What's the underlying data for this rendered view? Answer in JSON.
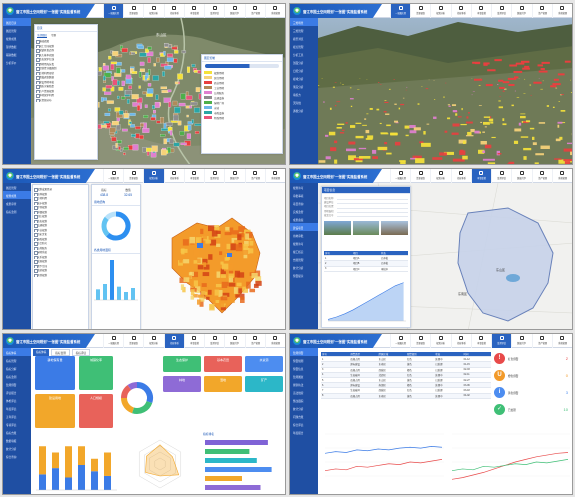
{
  "app": {
    "title": "窗江市国土空间规划\"一张图\"实施监督系统"
  },
  "nav": [
    {
      "label": "一张图应用"
    },
    {
      "label": "资源调查"
    },
    {
      "label": "规划分析"
    },
    {
      "label": "指标体系"
    },
    {
      "label": "审查监管"
    },
    {
      "label": "监测评估"
    },
    {
      "label": "数据共享"
    },
    {
      "label": "资产管理"
    },
    {
      "label": "系统管理"
    }
  ],
  "s1": {
    "side": [
      "图层目录",
      "图层管理",
      "规划成果",
      "现状数据",
      "辅助数据",
      "分析评价"
    ],
    "tree_title": "目录",
    "tree_tabs": [
      "全部图层",
      "专题"
    ],
    "tree": [
      "基础底图",
      "国土空间规划",
      "城镇开发边界",
      "永久基本农田",
      "生态保护红线",
      "用地用海分类",
      "控制性详细规划",
      "土地利用现状",
      "地籍调查数据",
      "建设用地审批",
      "地质灾害隐患",
      "矿产资源规划",
      "林地保护利用",
      "水资源分布"
    ],
    "legend_title": "图层控制",
    "legend": [
      {
        "label": "规划用地",
        "color": "#f5e23a"
      },
      {
        "label": "居住用地",
        "color": "#f7d27a"
      },
      {
        "label": "商业用地",
        "color": "#e83f3f"
      },
      {
        "label": "工业用地",
        "color": "#b08a5a"
      },
      {
        "label": "公共服务",
        "color": "#e07fd0"
      },
      {
        "label": "交通设施",
        "color": "#8d8d8d"
      },
      {
        "label": "绿地广场",
        "color": "#4db04a"
      },
      {
        "label": "水域",
        "color": "#6cb7e8"
      },
      {
        "label": "市政设施",
        "color": "#2aa6a6"
      },
      {
        "label": "特殊用地",
        "color": "#e9547a"
      }
    ],
    "map_label": "东山区"
  },
  "s2": {
    "side": [
      "三维场景",
      "三维管理",
      "模型浏览",
      "视点管理",
      "分析工具",
      "剖面分析",
      "日照分析",
      "视域分析",
      "淹没分析",
      "填挖方",
      "天际线",
      "通视分析"
    ]
  },
  "s3": {
    "side": [
      "图层管理",
      "规划成果",
      "成果审查",
      "指标监测"
    ],
    "tree": [
      "规划成果目录",
      "总体规划",
      "土地利用",
      "城乡规划",
      "专项规划",
      "详细规划",
      "村庄规划",
      "生态规划",
      "交通规划",
      "产业规划",
      "历史文化",
      "市政规划",
      "综合防灾",
      "公共服务",
      "绿地系统",
      "水系规划",
      "能源规划",
      "地下空间",
      "旅游规划",
      "其他规划"
    ],
    "stat_headers": [
      "指标",
      "数值"
    ],
    "stat_values": [
      "438.8",
      "32.65"
    ],
    "chart1_title": "用地结构",
    "chart2_title": "各类用地面积",
    "bars": [
      8,
      12,
      30,
      10,
      6,
      9
    ],
    "donut": [
      62,
      24,
      14
    ]
  },
  "s4": {
    "side": [
      "规划许可",
      "审批事项",
      "项目查询",
      "实施监管",
      "成果备案",
      "建设项目",
      "用地审批",
      "规划许可",
      "竣工核实",
      "台账管理",
      "统计分析",
      "预警提示"
    ],
    "info_title": "项目信息",
    "fields": [
      "项目名称",
      "建设单位",
      "项目位置",
      "用地面积",
      "批复文号"
    ],
    "table_headers": [
      "序号",
      "项目",
      "状态"
    ],
    "table_rows": [
      [
        "1",
        "项目A",
        "已审批"
      ],
      [
        "2",
        "项目B",
        "已审批"
      ],
      [
        "3",
        "项目C",
        "审批中"
      ]
    ],
    "area_series": [
      2,
      5,
      9,
      14,
      20,
      26,
      32,
      38,
      44,
      48
    ],
    "map_label_1": "东山区",
    "map_label_2": "东南区"
  },
  "s5": {
    "side": [
      "指标体系",
      "指标管理",
      "指标分解",
      "指标监测",
      "监测预警",
      "评估报告",
      "体检评估",
      "年度评估",
      "五年评估",
      "专项评估",
      "指标台账",
      "数据填报",
      "统计分析",
      "综合查询"
    ],
    "tabs": [
      "指标体系",
      "指标监测",
      "指标评估"
    ],
    "big_cards": [
      {
        "label": "耕地保有量",
        "color": "#3b7be6"
      },
      {
        "label": "建设用地",
        "color": "#f2a72a"
      }
    ],
    "mid_cards": [
      {
        "label": "城镇化率",
        "color": "#3fbf76"
      },
      {
        "label": "人口规模",
        "color": "#e8625a"
      }
    ],
    "grid_cards": [
      {
        "label": "生态保护",
        "color": "#3fbf76"
      },
      {
        "label": "基本农田",
        "color": "#e8625a"
      },
      {
        "label": "水资源",
        "color": "#4d8df0"
      },
      {
        "label": "林地",
        "color": "#8e6bd6"
      },
      {
        "label": "湿地",
        "color": "#f2a72a"
      },
      {
        "label": "矿产",
        "color": "#2cb7c8"
      }
    ],
    "donut": [
      30,
      25,
      20,
      15,
      10
    ],
    "stacked_bars": [
      [
        10,
        18
      ],
      [
        14,
        10
      ],
      [
        8,
        20
      ],
      [
        16,
        12
      ],
      [
        12,
        8
      ],
      [
        9,
        15
      ]
    ],
    "radar": [
      0.8,
      0.6,
      0.9,
      0.5,
      0.7,
      0.65
    ],
    "hbars": [
      {
        "v": 85,
        "c": "#7f63d6"
      },
      {
        "v": 60,
        "c": "#3fbf76"
      },
      {
        "v": 70,
        "c": "#2cb7c8"
      },
      {
        "v": 90,
        "c": "#4d8df0"
      },
      {
        "v": 50,
        "c": "#f2a72a"
      },
      {
        "v": 75,
        "c": "#8e6bd6"
      }
    ],
    "hbar_title": "指标排名"
  },
  "s6": {
    "side": [
      "监测预警",
      "预警规则",
      "预警信息",
      "监测图斑",
      "督察执法",
      "违法线索",
      "整改跟踪",
      "统计分析",
      "问题台账",
      "综合评估",
      "年度报告"
    ],
    "table_headers": [
      "序号",
      "预警类型",
      "所属区域",
      "预警级别",
      "状态",
      "时间"
    ],
    "table_rows": [
      [
        "1",
        "违规占用",
        "东山区",
        "红色",
        "处理中",
        "01-12"
      ],
      [
        "2",
        "超标建设",
        "东南区",
        "黄色",
        "已处理",
        "01-15"
      ],
      [
        "3",
        "违规占用",
        "西城区",
        "橙色",
        "已处理",
        "02-03"
      ],
      [
        "4",
        "生态破坏",
        "北郊区",
        "红色",
        "处理中",
        "02-11"
      ],
      [
        "5",
        "违规占用",
        "东山区",
        "黄色",
        "已处理",
        "02-27"
      ],
      [
        "6",
        "超标建设",
        "南湖区",
        "橙色",
        "处理中",
        "03-06"
      ],
      [
        "7",
        "生态破坏",
        "西城区",
        "红色",
        "已处理",
        "03-18"
      ],
      [
        "8",
        "违规占用",
        "东南区",
        "黄色",
        "处理中",
        "04-02"
      ]
    ],
    "alerts": [
      {
        "label": "红色预警",
        "value": "2",
        "color": "#e84a4a",
        "mark": "!"
      },
      {
        "label": "橙色预警",
        "value": "0",
        "color": "#f29a2a",
        "mark": "U"
      },
      {
        "label": "黄色预警",
        "value": "3",
        "color": "#4d8df0",
        "mark": "i"
      },
      {
        "label": "已处理",
        "value": "10",
        "color": "#3fbf76",
        "mark": "✓"
      }
    ],
    "line1": [
      40,
      42,
      41,
      44,
      43,
      45,
      44,
      46,
      47,
      46,
      48,
      47
    ],
    "line2": [
      20,
      22,
      21,
      25,
      24,
      26,
      28,
      27,
      30,
      29,
      31,
      33
    ],
    "line3": [
      10,
      12,
      15,
      18,
      22,
      26,
      30,
      33,
      36,
      38,
      40,
      41
    ]
  }
}
